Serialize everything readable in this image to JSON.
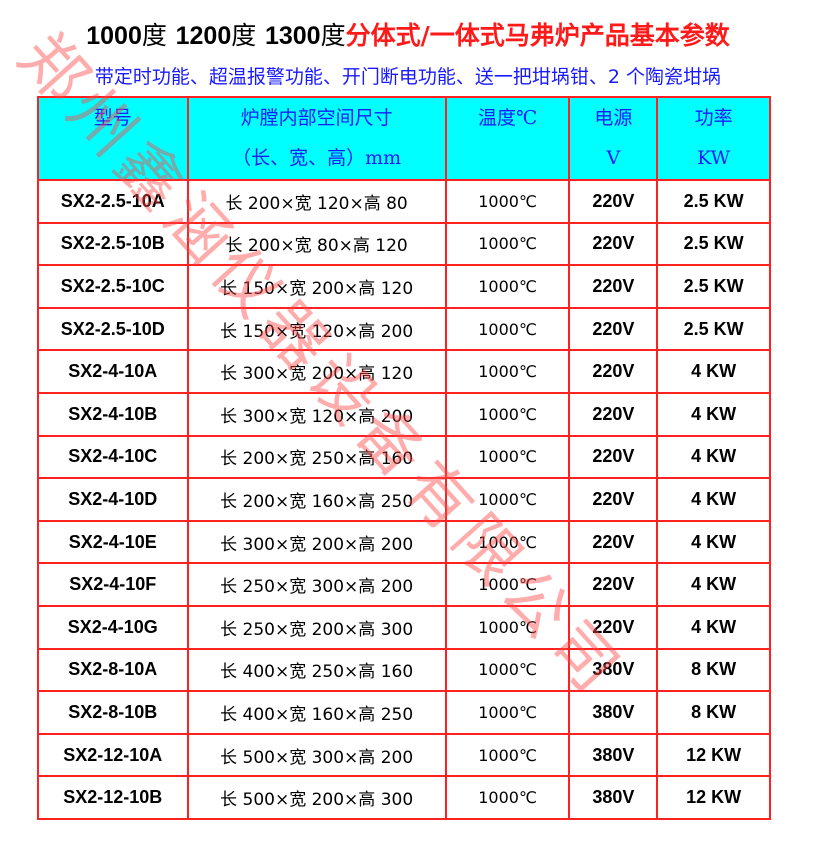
{
  "title": {
    "t1": "1000",
    "d1": "度",
    "t2": "1200",
    "d2": "度",
    "t3": "1300",
    "d3": "度",
    "rest": "分体式/一体式马弗炉产品基本参数"
  },
  "subtitle": "带定时功能、超温报警功能、开门断电功能、送一把坩埚钳、2 个陶瓷坩埚",
  "watermark": "郑州鑫涵仪器设备有限公司",
  "colors": {
    "header_bg": "#00ffff",
    "border": "#ff2020",
    "title_red": "#ff1a1a",
    "blue": "#1a1aff"
  },
  "headers": [
    {
      "l1": "型号",
      "l2": ""
    },
    {
      "l1": "炉膛内部空间尺寸",
      "l2": "（长、宽、高）mm"
    },
    {
      "l1": "温度℃",
      "l2": ""
    },
    {
      "l1": "电源",
      "l2": "V"
    },
    {
      "l1": "功率",
      "l2": "KW"
    }
  ],
  "rows": [
    [
      "SX2-2.5-10A",
      "长 200×宽 120×高 80",
      "1000℃",
      "220V",
      "2.5 KW"
    ],
    [
      "SX2-2.5-10B",
      "长 200×宽 80×高 120",
      "1000℃",
      "220V",
      "2.5 KW"
    ],
    [
      "SX2-2.5-10C",
      "长 150×宽 200×高 120",
      "1000℃",
      "220V",
      "2.5 KW"
    ],
    [
      "SX2-2.5-10D",
      "长 150×宽 120×高 200",
      "1000℃",
      "220V",
      "2.5 KW"
    ],
    [
      "SX2-4-10A",
      "长 300×宽 200×高 120",
      "1000℃",
      "220V",
      "4 KW"
    ],
    [
      "SX2-4-10B",
      "长 300×宽 120×高 200",
      "1000℃",
      "220V",
      "4 KW"
    ],
    [
      "SX2-4-10C",
      "长 200×宽 250×高 160",
      "1000℃",
      "220V",
      "4 KW"
    ],
    [
      "SX2-4-10D",
      "长 200×宽 160×高 250",
      "1000℃",
      "220V",
      "4 KW"
    ],
    [
      "SX2-4-10E",
      "长 300×宽 200×高 200",
      "1000℃",
      "220V",
      "4 KW"
    ],
    [
      "SX2-4-10F",
      "长 250×宽 300×高 200",
      "1000℃",
      "220V",
      "4 KW"
    ],
    [
      "SX2-4-10G",
      "长 250×宽 200×高 300",
      "1000℃",
      "220V",
      "4 KW"
    ],
    [
      "SX2-8-10A",
      "长 400×宽 250×高 160",
      "1000℃",
      "380V",
      "8 KW"
    ],
    [
      "SX2-8-10B",
      "长 400×宽 160×高 250",
      "1000℃",
      "380V",
      "8 KW"
    ],
    [
      "SX2-12-10A",
      "长 500×宽 300×高 200",
      "1000℃",
      "380V",
      "12 KW"
    ],
    [
      "SX2-12-10B",
      "长 500×宽 200×高 300",
      "1000℃",
      "380V",
      "12 KW"
    ]
  ]
}
